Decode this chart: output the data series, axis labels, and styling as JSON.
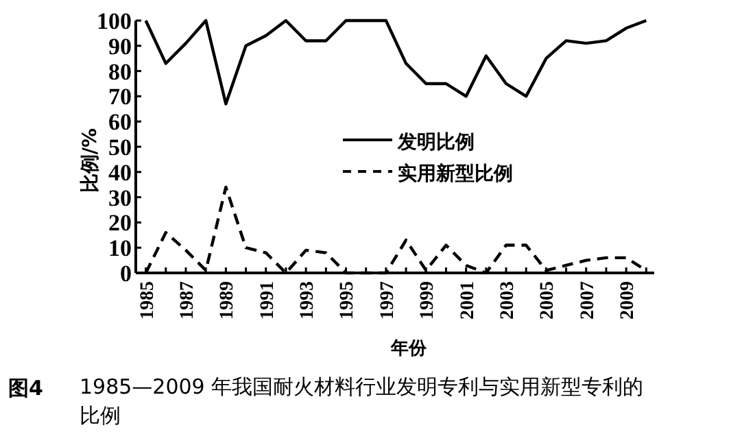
{
  "chart_data": {
    "type": "line",
    "xlabel": "年份",
    "ylabel": "比例/%",
    "x": [
      1985,
      1986,
      1987,
      1988,
      1989,
      1990,
      1991,
      1992,
      1993,
      1994,
      1995,
      1996,
      1997,
      1998,
      1999,
      2000,
      2001,
      2002,
      2003,
      2004,
      2005,
      2006,
      2007,
      2008,
      2009,
      2010
    ],
    "xlim": [
      1984.5,
      2010.4
    ],
    "ylim": [
      0,
      100
    ],
    "xticks": [
      1985,
      {
        "value": 1986,
        "label": null
      },
      1987,
      {
        "value": 1988,
        "label": null
      },
      1989,
      {
        "value": 1990,
        "label": null
      },
      1991,
      {
        "value": 1992,
        "label": null
      },
      1993,
      {
        "value": 1994,
        "label": null
      },
      1995,
      {
        "value": 1996,
        "label": null
      },
      1997,
      {
        "value": 1998,
        "label": null
      },
      1999,
      {
        "value": 2000,
        "label": null
      },
      2001,
      {
        "value": 2002,
        "label": null
      },
      2003,
      {
        "value": 2004,
        "label": null
      },
      2005,
      {
        "value": 2006,
        "label": null
      },
      2007,
      {
        "value": 2008,
        "label": null
      },
      2009,
      {
        "value": 2010,
        "label": null
      }
    ],
    "yticks": [
      0,
      10,
      20,
      30,
      40,
      50,
      60,
      70,
      80,
      90,
      100
    ],
    "legend": "center",
    "series": [
      {
        "name": "发明比例",
        "color": "#000000",
        "line_style": "solid",
        "values": [
          100,
          83,
          91,
          100,
          67,
          90,
          94,
          100,
          92,
          92,
          100,
          100,
          100,
          83,
          75,
          75,
          70,
          86,
          75,
          70,
          85,
          92,
          91,
          92,
          97,
          100
        ]
      },
      {
        "name": "实用新型比例",
        "color": "#000000",
        "line_style": "dashed",
        "values": [
          0,
          16,
          9,
          1,
          34,
          10,
          8,
          0,
          9,
          8,
          0,
          0,
          0,
          13,
          1,
          11,
          3,
          0,
          11,
          11,
          1,
          3,
          5,
          6,
          6,
          1
        ]
      }
    ],
    "annotations": [
      "图4",
      "1985—2009 年我国耐火材料行业发明专利与实用新型专利的比例"
    ]
  }
}
